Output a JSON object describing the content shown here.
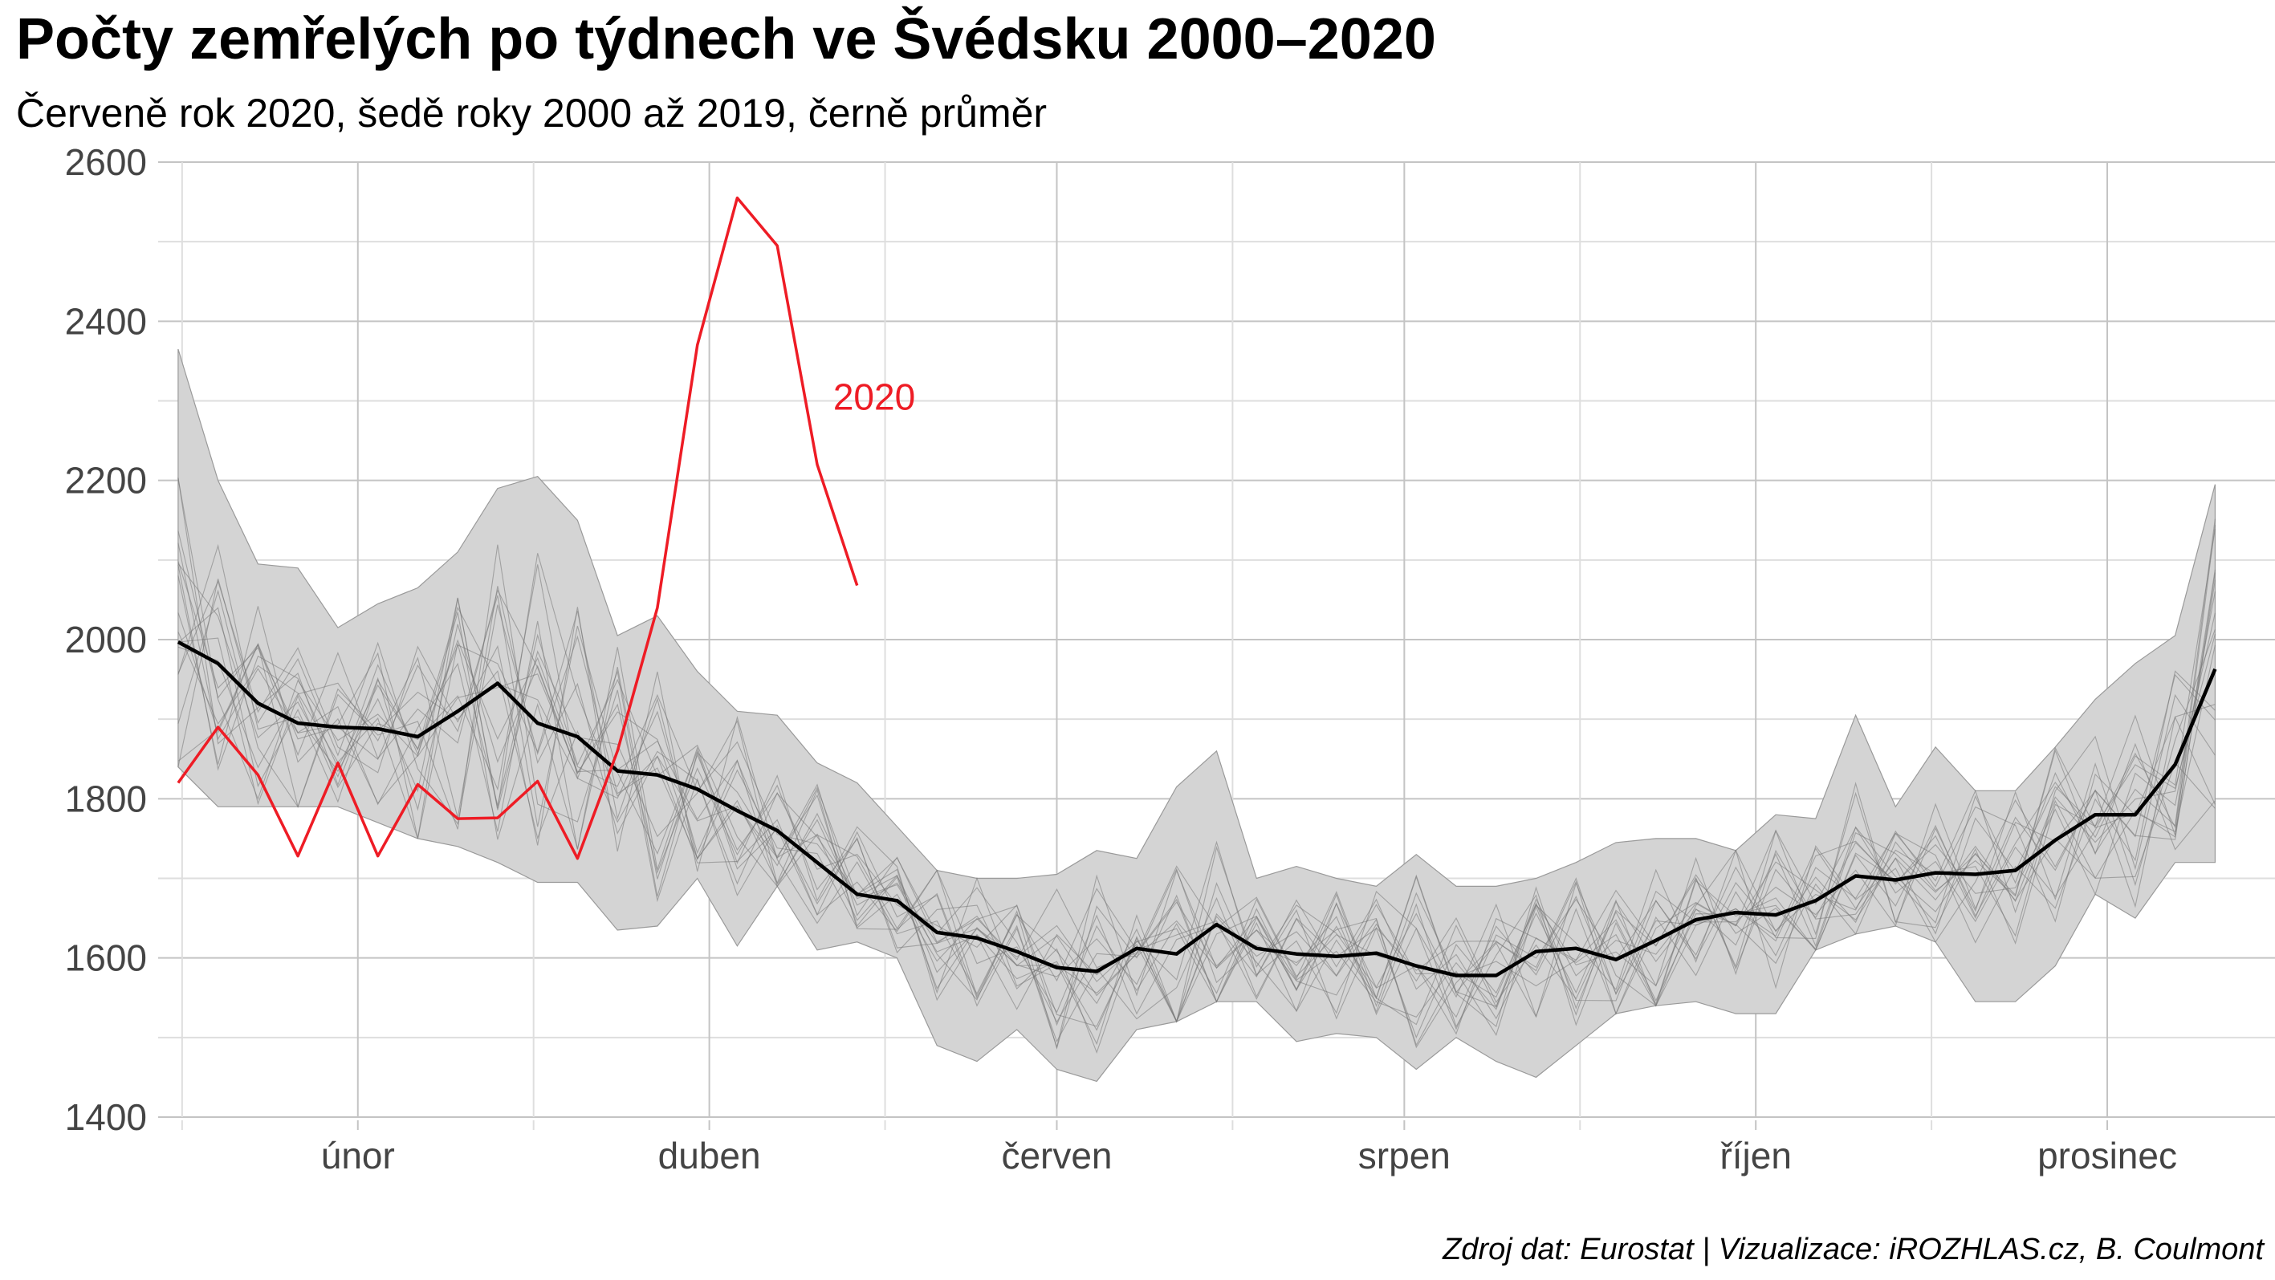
{
  "title": "Počty zemřelých po týdnech ve Švédsku 2000–2020",
  "subtitle": "Červeně rok 2020, šedě roky 2000 až 2019, černě průměr",
  "source": "Zdroj dat: Eurostat | Vizualizace: iROZHLAS.cz, B. Coulmont",
  "chart_data": {
    "type": "line",
    "title": "Počty zemřelých po týdnech ve Švédsku 2000–2020",
    "subtitle": "Červeně rok 2020, šedě roky 2000 až 2019, černě průměr",
    "xlabel": "",
    "ylabel": "",
    "xlim": [
      0.5,
      53.5
    ],
    "ylim": [
      1400,
      2600
    ],
    "y_ticks": [
      1400,
      1600,
      1800,
      2000,
      2200,
      2400,
      2600
    ],
    "x_ticks": [
      {
        "label": "únor",
        "week": 5.5
      },
      {
        "label": "duben",
        "week": 14.3
      },
      {
        "label": "červen",
        "week": 23.0
      },
      {
        "label": "srpen",
        "week": 31.7
      },
      {
        "label": "říjen",
        "week": 40.5
      },
      {
        "label": "prosinec",
        "week": 49.3
      }
    ],
    "grid": true,
    "colors": {
      "year_2020": "#ee1c25",
      "average": "#000000",
      "range_band": "#d4d4d4",
      "individual_years": "#777777"
    },
    "series": [
      {
        "name": "2020",
        "color": "#ee1c25",
        "x": [
          1,
          2,
          3,
          4,
          5,
          6,
          7,
          8,
          9,
          10,
          11,
          12,
          13,
          14,
          15,
          16,
          17,
          18
        ],
        "values": [
          1820,
          1890,
          1830,
          1728,
          1845,
          1728,
          1818,
          1775,
          1776,
          1822,
          1725,
          1860,
          2040,
          2370,
          2555,
          2495,
          2220,
          2068
        ]
      },
      {
        "name": "průměr",
        "color": "#000000",
        "x": [
          1,
          2,
          3,
          4,
          5,
          6,
          7,
          8,
          9,
          10,
          11,
          12,
          13,
          14,
          15,
          16,
          17,
          18,
          19,
          20,
          21,
          22,
          23,
          24,
          25,
          26,
          27,
          28,
          29,
          30,
          31,
          32,
          33,
          34,
          35,
          36,
          37,
          38,
          39,
          40,
          41,
          42,
          43,
          44,
          45,
          46,
          47,
          48,
          49,
          50,
          51,
          52,
          53
        ],
        "values": [
          1997,
          1970,
          1920,
          1895,
          1890,
          1888,
          1878,
          1910,
          1945,
          1895,
          1878,
          1835,
          1830,
          1812,
          1785,
          1760,
          1720,
          1680,
          1672,
          1632,
          1625,
          1608,
          1588,
          1583,
          1612,
          1605,
          1642,
          1612,
          1605,
          1602,
          1606,
          1590,
          1578,
          1578,
          1608,
          1612,
          1598,
          1622,
          1648,
          1657,
          1654,
          1672,
          1703,
          1698,
          1707,
          1705,
          1710,
          1748,
          1780,
          1780,
          1843,
          1963,
          null
        ]
      },
      {
        "name": "min",
        "x": [
          1,
          2,
          3,
          4,
          5,
          6,
          7,
          8,
          9,
          10,
          11,
          12,
          13,
          14,
          15,
          16,
          17,
          18,
          19,
          20,
          21,
          22,
          23,
          24,
          25,
          26,
          27,
          28,
          29,
          30,
          31,
          32,
          33,
          34,
          35,
          36,
          37,
          38,
          39,
          40,
          41,
          42,
          43,
          44,
          45,
          46,
          47,
          48,
          49,
          50,
          51,
          52,
          53
        ],
        "values": [
          1840,
          1790,
          1790,
          1790,
          1790,
          1770,
          1750,
          1740,
          1720,
          1695,
          1695,
          1635,
          1640,
          1700,
          1615,
          1690,
          1610,
          1620,
          1600,
          1490,
          1470,
          1510,
          1460,
          1445,
          1510,
          1520,
          1545,
          1545,
          1495,
          1505,
          1500,
          1460,
          1500,
          1470,
          1450,
          1490,
          1530,
          1540,
          1545,
          1530,
          1530,
          1610,
          1630,
          1640,
          1620,
          1545,
          1545,
          1590,
          1680,
          1650,
          1720,
          1720,
          null
        ]
      },
      {
        "name": "max",
        "x": [
          1,
          2,
          3,
          4,
          5,
          6,
          7,
          8,
          9,
          10,
          11,
          12,
          13,
          14,
          15,
          16,
          17,
          18,
          19,
          20,
          21,
          22,
          23,
          24,
          25,
          26,
          27,
          28,
          29,
          30,
          31,
          32,
          33,
          34,
          35,
          36,
          37,
          38,
          39,
          40,
          41,
          42,
          43,
          44,
          45,
          46,
          47,
          48,
          49,
          50,
          51,
          52,
          53
        ],
        "values": [
          2365,
          2200,
          2095,
          2090,
          2015,
          2045,
          2065,
          2110,
          2190,
          2205,
          2150,
          2005,
          2030,
          1960,
          1910,
          1905,
          1845,
          1820,
          1765,
          1710,
          1700,
          1700,
          1705,
          1735,
          1725,
          1815,
          1860,
          1700,
          1715,
          1700,
          1690,
          1730,
          1690,
          1690,
          1700,
          1720,
          1745,
          1750,
          1750,
          1735,
          1780,
          1775,
          1905,
          1790,
          1865,
          1810,
          1810,
          1865,
          1925,
          1970,
          2005,
          2195,
          null
        ]
      }
    ],
    "annotations": [
      {
        "text": "2020",
        "x": 17.4,
        "y": 2305
      }
    ]
  }
}
